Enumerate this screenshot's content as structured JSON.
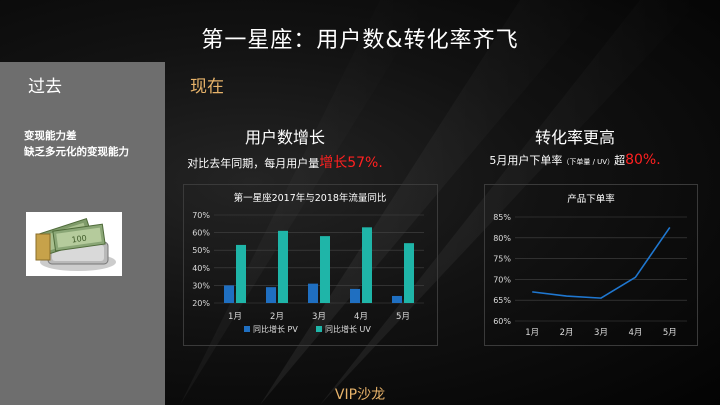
{
  "slide": {
    "title": "第一星座：用户数&转化率齐飞",
    "footer": "VIP沙龙",
    "accent_gold": "#e7b36a",
    "accent_red": "#ff2020"
  },
  "left": {
    "label": "过去",
    "lines": [
      "变现能力差",
      "缺乏多元化的变现能力"
    ],
    "image_icon": "money-stack-icon"
  },
  "right": {
    "label": "现在",
    "users": {
      "heading": "用户数增长",
      "caption_prefix": "对比去年同期，每月用户量",
      "caption_highlight": "增长57%."
    },
    "conversion": {
      "heading": "转化率更高",
      "caption_prefix": "5月用户下单率",
      "caption_small": "（下单量 / UV）",
      "caption_mid": "超",
      "caption_highlight": "80%."
    }
  },
  "chart_data": [
    {
      "type": "bar",
      "title": "第一星座2017年与2018年流量同比",
      "categories": [
        "1月",
        "2月",
        "3月",
        "4月",
        "5月"
      ],
      "series": [
        {
          "name": "同比增长 PV",
          "values": [
            30,
            29,
            31,
            28,
            24
          ],
          "color": "#1f6fc1"
        },
        {
          "name": "同比增长 UV",
          "values": [
            53,
            61,
            58,
            63,
            54
          ],
          "color": "#1fb5a8"
        }
      ],
      "ylim": [
        20,
        70
      ],
      "yticks": [
        "20%",
        "30%",
        "40%",
        "50%",
        "60%",
        "70%"
      ],
      "grid": true,
      "legend": "bottom"
    },
    {
      "type": "line",
      "title": "产品下单率",
      "categories": [
        "1月",
        "2月",
        "3月",
        "4月",
        "5月"
      ],
      "series": [
        {
          "values": [
            67,
            66,
            65.5,
            70.5,
            82.5
          ],
          "color": "#1f77d0"
        }
      ],
      "ylim": [
        60,
        85
      ],
      "yticks": [
        "60%",
        "65%",
        "70%",
        "75%",
        "80%",
        "85%"
      ],
      "grid": true
    }
  ]
}
